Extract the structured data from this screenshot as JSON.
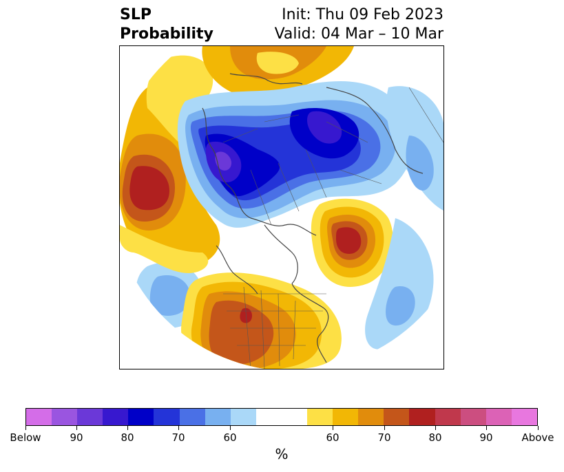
{
  "title": {
    "line1": "SLP",
    "line2": "Probability"
  },
  "init": {
    "line1": "Init: Thu 09 Feb 2023",
    "line2": "Valid: 04 Mar – 10 Mar"
  },
  "colorbar": {
    "colors": [
      "#d46de8",
      "#9a55e0",
      "#6b38d8",
      "#3718cf",
      "#0000c8",
      "#2434d8",
      "#4a70e6",
      "#78b0f0",
      "#aad8f8",
      "#ffffff",
      "#ffffff",
      "#fde045",
      "#f2b705",
      "#e18c0c",
      "#c4561a",
      "#b0201f",
      "#c0384c",
      "#cc4e80",
      "#dc62b6",
      "#e877df"
    ],
    "labels": [
      "Below",
      "90",
      "80",
      "70",
      "60",
      "60",
      "70",
      "80",
      "90",
      "Above"
    ],
    "unit": "%"
  },
  "map": {
    "projection": "north-polar-stereographic",
    "features": [
      "coastlines",
      "country-borders",
      "state-borders"
    ]
  }
}
